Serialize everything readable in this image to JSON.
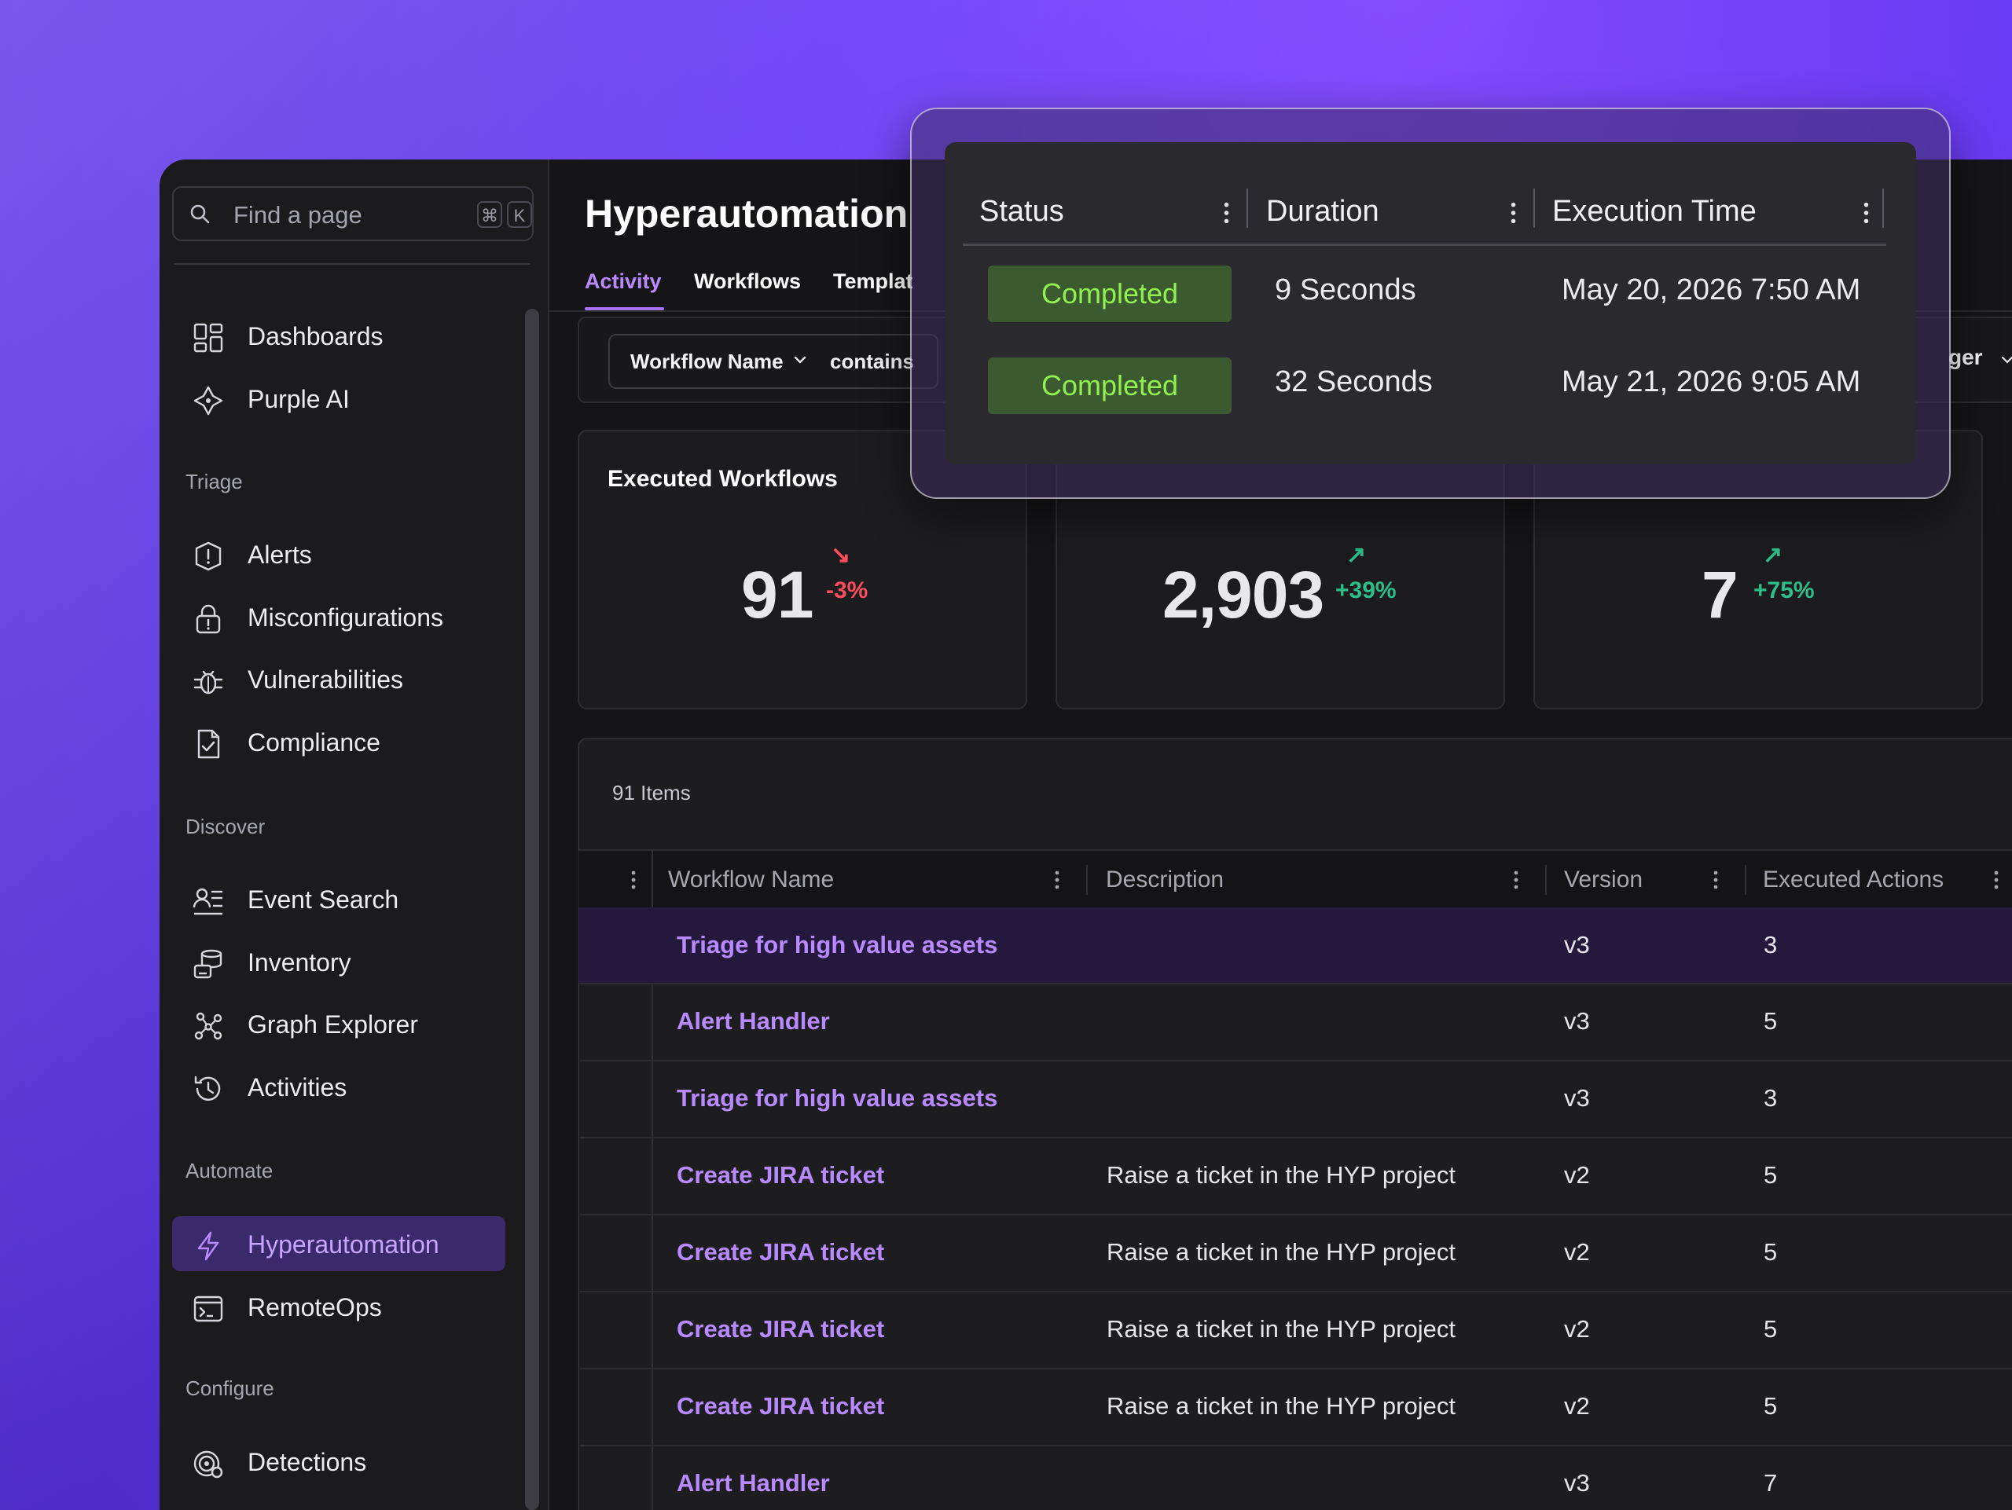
{
  "search": {
    "placeholder": "Find a page",
    "kbd_cmd": "⌘",
    "kbd_key": "K"
  },
  "sidebar": {
    "top_items": [
      {
        "label": "Dashboards",
        "icon": "dashboard-grid-icon"
      },
      {
        "label": "Purple AI",
        "icon": "purple-ai-icon"
      }
    ],
    "sections": [
      {
        "title": "Triage",
        "items": [
          {
            "label": "Alerts",
            "icon": "alert-shield-icon"
          },
          {
            "label": "Misconfigurations",
            "icon": "lock-alert-icon"
          },
          {
            "label": "Vulnerabilities",
            "icon": "bug-icon"
          },
          {
            "label": "Compliance",
            "icon": "document-check-icon"
          }
        ]
      },
      {
        "title": "Discover",
        "items": [
          {
            "label": "Event Search",
            "icon": "event-search-icon"
          },
          {
            "label": "Inventory",
            "icon": "inventory-icon"
          },
          {
            "label": "Graph Explorer",
            "icon": "graph-icon"
          },
          {
            "label": "Activities",
            "icon": "history-clock-icon"
          }
        ]
      },
      {
        "title": "Automate",
        "items": [
          {
            "label": "Hyperautomation",
            "icon": "lightning-icon",
            "active": true
          },
          {
            "label": "RemoteOps",
            "icon": "terminal-icon"
          }
        ]
      },
      {
        "title": "Configure",
        "items": [
          {
            "label": "Detections",
            "icon": "detections-radar-icon"
          }
        ]
      }
    ]
  },
  "page": {
    "title": "Hyperautomation",
    "tabs": [
      "Activity",
      "Workflows",
      "Templat"
    ],
    "active_tab": "Activity"
  },
  "filter": {
    "field": "Workflow Name",
    "operator": "contains",
    "right_partial": "ger"
  },
  "cards": [
    {
      "title": "Executed Workflows",
      "value": "91",
      "delta": "-3%",
      "trend": "down"
    },
    {
      "title": "",
      "value": "2,903",
      "delta": "+39%",
      "trend": "up"
    },
    {
      "title": "",
      "value": "7",
      "delta": "+75%",
      "trend": "up"
    }
  ],
  "table": {
    "count_label": "91 Items",
    "columns": [
      "Workflow Name",
      "Description",
      "Version",
      "Executed Actions"
    ],
    "rows": [
      {
        "name": "Triage for high value assets",
        "description": "",
        "version": "v3",
        "actions": "3"
      },
      {
        "name": "Alert Handler",
        "description": "",
        "version": "v3",
        "actions": "5"
      },
      {
        "name": "Triage for high value assets",
        "description": "",
        "version": "v3",
        "actions": "3"
      },
      {
        "name": "Create JIRA ticket",
        "description": "Raise a ticket in the HYP project",
        "version": "v2",
        "actions": "5"
      },
      {
        "name": "Create JIRA ticket",
        "description": "Raise a ticket in the HYP project",
        "version": "v2",
        "actions": "5"
      },
      {
        "name": "Create JIRA ticket",
        "description": "Raise a ticket in the HYP project",
        "version": "v2",
        "actions": "5"
      },
      {
        "name": "Create JIRA ticket",
        "description": "Raise a ticket in the HYP project",
        "version": "v2",
        "actions": "5"
      },
      {
        "name": "Alert Handler",
        "description": "",
        "version": "v3",
        "actions": "7"
      }
    ]
  },
  "popup": {
    "columns": [
      "Status",
      "Duration",
      "Execution Time"
    ],
    "rows": [
      {
        "status": "Completed",
        "duration": "9 Seconds",
        "time": "May 20, 2026 7:50 AM"
      },
      {
        "status": "Completed",
        "duration": "32 Seconds",
        "time": "May 21, 2026 9:05 AM"
      }
    ]
  },
  "colors": {
    "accent": "#b98aff",
    "up": "#2dbf8a",
    "down": "#ff4d5e",
    "badge_text": "#8ff04f"
  }
}
